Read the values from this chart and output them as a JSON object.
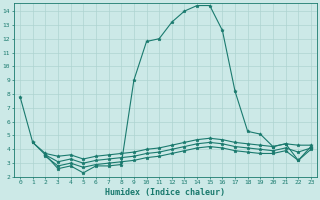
{
  "xlabel": "Humidex (Indice chaleur)",
  "ylabel": "",
  "xlim": [
    -0.5,
    23.5
  ],
  "ylim": [
    2.0,
    14.6
  ],
  "yticks": [
    2,
    3,
    4,
    5,
    6,
    7,
    8,
    9,
    10,
    11,
    12,
    13,
    14
  ],
  "xticks": [
    0,
    1,
    2,
    3,
    4,
    5,
    6,
    7,
    8,
    9,
    10,
    11,
    12,
    13,
    14,
    15,
    16,
    17,
    18,
    19,
    20,
    21,
    22,
    23
  ],
  "bg_color": "#cce9e7",
  "grid_color": "#aed4d1",
  "line_color": "#1a7a6e",
  "line1_x": [
    0,
    1,
    2,
    3,
    4,
    5,
    6,
    7,
    8,
    9,
    10,
    11,
    12,
    13,
    14,
    15,
    16,
    17,
    18,
    19,
    20,
    21,
    22,
    23
  ],
  "line1_y": [
    7.8,
    4.5,
    3.6,
    2.6,
    2.8,
    2.3,
    2.8,
    2.8,
    2.9,
    9.0,
    11.8,
    12.0,
    13.2,
    14.0,
    14.4,
    14.4,
    12.6,
    8.2,
    5.3,
    5.1,
    4.2,
    4.4,
    3.2,
    4.2
  ],
  "line2_x": [
    1,
    2,
    3,
    4,
    5,
    6,
    7,
    8,
    9,
    10,
    11,
    12,
    13,
    14,
    15,
    16,
    17,
    18,
    19,
    20,
    21,
    22,
    23
  ],
  "line2_y": [
    4.5,
    3.7,
    3.5,
    3.6,
    3.3,
    3.5,
    3.6,
    3.7,
    3.8,
    4.0,
    4.1,
    4.3,
    4.5,
    4.7,
    4.8,
    4.7,
    4.5,
    4.4,
    4.3,
    4.2,
    4.4,
    4.3,
    4.3
  ],
  "line3_x": [
    2,
    3,
    4,
    5,
    6,
    7,
    8,
    9,
    10,
    11,
    12,
    13,
    14,
    15,
    16,
    17,
    18,
    19,
    20,
    21,
    22,
    23
  ],
  "line3_y": [
    3.5,
    2.8,
    3.0,
    2.7,
    2.9,
    3.0,
    3.1,
    3.2,
    3.4,
    3.5,
    3.7,
    3.9,
    4.1,
    4.2,
    4.1,
    3.9,
    3.8,
    3.7,
    3.7,
    3.9,
    3.2,
    4.0
  ],
  "line4_x": [
    2,
    3,
    4,
    5,
    6,
    7,
    8,
    9,
    10,
    11,
    12,
    13,
    14,
    15,
    16,
    17,
    18,
    19,
    20,
    21,
    22,
    23
  ],
  "line4_y": [
    3.6,
    3.1,
    3.3,
    3.0,
    3.2,
    3.3,
    3.4,
    3.5,
    3.7,
    3.8,
    4.0,
    4.2,
    4.4,
    4.5,
    4.4,
    4.2,
    4.1,
    4.0,
    3.9,
    4.1,
    3.8,
    4.1
  ]
}
